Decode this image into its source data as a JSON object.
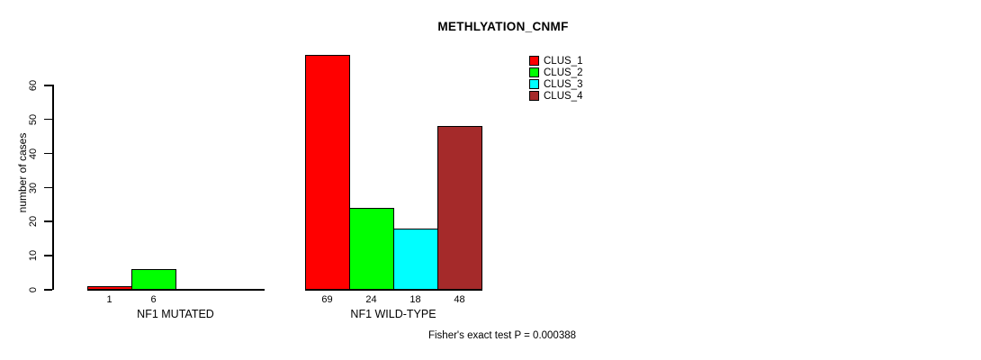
{
  "chart_data": {
    "type": "bar",
    "title": "METHLYATION_CNMF",
    "ylabel": "number of cases",
    "ylim": [
      0,
      60
    ],
    "yticks": [
      0,
      10,
      20,
      30,
      40,
      50,
      60
    ],
    "categories": [
      "NF1 MUTATED",
      "NF1 WILD-TYPE"
    ],
    "series": [
      {
        "name": "CLUS_1",
        "color": "#FF0000",
        "values": [
          1,
          69
        ]
      },
      {
        "name": "CLUS_2",
        "color": "#00FF00",
        "values": [
          6,
          24
        ]
      },
      {
        "name": "CLUS_3",
        "color": "#00FFFF",
        "values": [
          0,
          18
        ]
      },
      {
        "name": "CLUS_4",
        "color": "#A52A2A",
        "values": [
          0,
          48
        ]
      }
    ],
    "bar_value_labels": [
      [
        "1",
        "6",
        "",
        ""
      ],
      [
        "69",
        "24",
        "18",
        "48"
      ]
    ],
    "legend_position": "top-right",
    "grid": false,
    "annotation": "Fisher's exact test P = 0.000388"
  }
}
